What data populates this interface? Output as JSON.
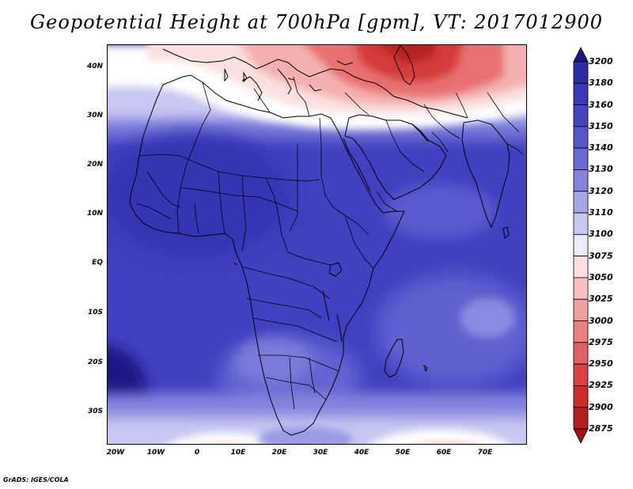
{
  "title": "Geopotential Height at 700hPa [gpm], VT: 2017012900",
  "credit": "GrADS: IGES/COLA",
  "map": {
    "lat_labels": [
      "40N",
      "30N",
      "20N",
      "10N",
      "EQ",
      "10S",
      "20S",
      "30S"
    ],
    "lon_labels": [
      "20W",
      "10W",
      "0",
      "10E",
      "20E",
      "30E",
      "40E",
      "50E",
      "60E",
      "70E"
    ],
    "extent": {
      "lon_min": -23,
      "lon_max": 80,
      "lat_min": -37,
      "lat_max": 45
    }
  },
  "colorbar": {
    "levels": [
      "3200",
      "3180",
      "3160",
      "3150",
      "3140",
      "3130",
      "3120",
      "3110",
      "3100",
      "3075",
      "3050",
      "3025",
      "3000",
      "2975",
      "2950",
      "2925",
      "2900",
      "2875"
    ],
    "colors": [
      "#1d1785",
      "#2c2ca5",
      "#3838b8",
      "#4545c4",
      "#5656cc",
      "#6a6ad4",
      "#8484de",
      "#a5a5e8",
      "#c8c8f2",
      "#ebebfb",
      "#fbe0e0",
      "#f7c0c0",
      "#f1a0a0",
      "#ec8080",
      "#e46060",
      "#dc4040",
      "#cc2a2a",
      "#b81e1e",
      "#a01414"
    ]
  },
  "colors": {
    "deep_blue": "#2c2ca5",
    "mid_blue": "#4545c4",
    "light_blue": "#a5a5e8",
    "white": "#ffffff",
    "pink": "#f7c0c0",
    "red": "#dc4040",
    "border": "#000000"
  }
}
